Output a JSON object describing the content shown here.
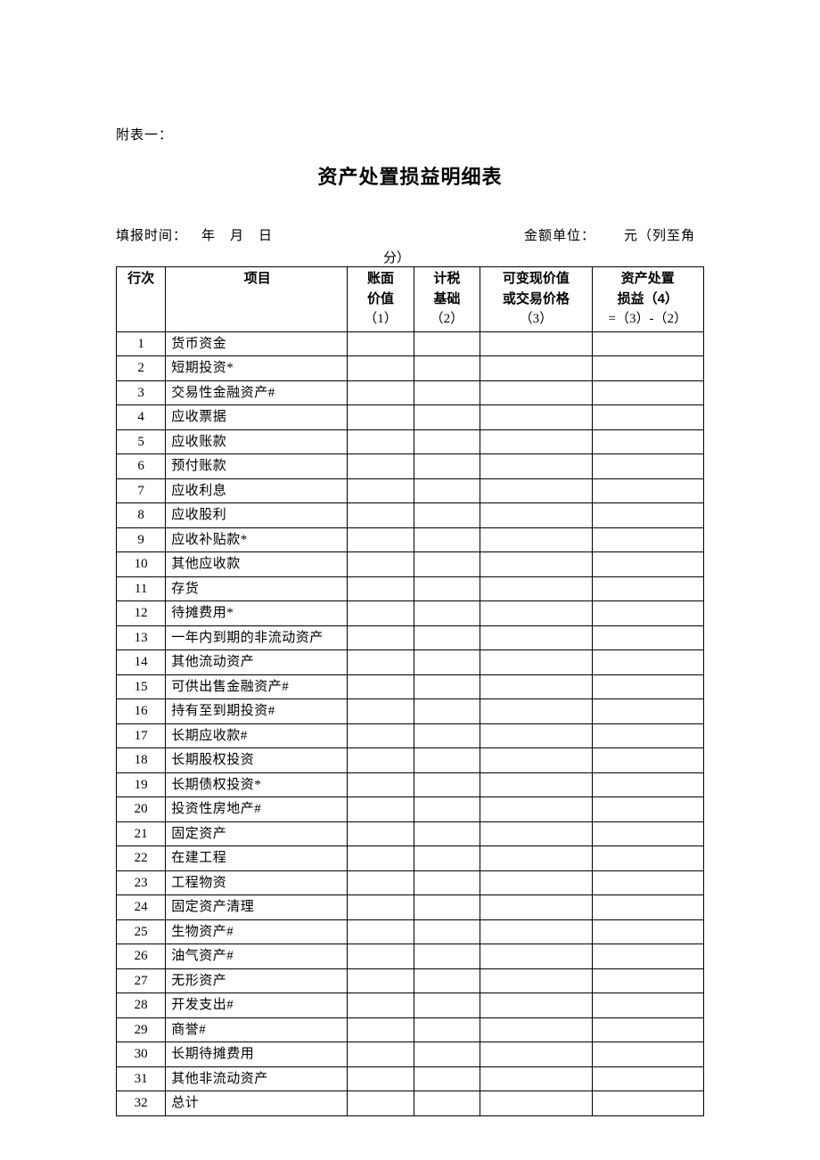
{
  "prefix": "附表一：",
  "title": "资产处置损益明细表",
  "meta": {
    "left": "填报时间： 年 月 日",
    "right": "金额单位：  元（列至角",
    "fen": "分）"
  },
  "table": {
    "headers": {
      "rownum": "行次",
      "item": "项目",
      "c1_l1": "账面",
      "c1_l2": "价值",
      "c1_l3": "（1）",
      "c2_l1": "计税",
      "c2_l2": "基础",
      "c2_l3": "（2）",
      "c3_l1": "可变现价值",
      "c3_l2": "或交易价格",
      "c3_l3": "（3）",
      "c4_l1": "资产处置",
      "c4_l2": "损益（4）",
      "c4_l3": "=（3）-（2）"
    },
    "rows": [
      {
        "n": "1",
        "item": "货币资金",
        "v1": "",
        "v2": "",
        "v3": "",
        "v4": ""
      },
      {
        "n": "2",
        "item": "短期投资*",
        "v1": "",
        "v2": "",
        "v3": "",
        "v4": ""
      },
      {
        "n": "3",
        "item": "交易性金融资产#",
        "v1": "",
        "v2": "",
        "v3": "",
        "v4": ""
      },
      {
        "n": "4",
        "item": "应收票据",
        "v1": "",
        "v2": "",
        "v3": "",
        "v4": ""
      },
      {
        "n": "5",
        "item": "应收账款",
        "v1": "",
        "v2": "",
        "v3": "",
        "v4": ""
      },
      {
        "n": "6",
        "item": "预付账款",
        "v1": "",
        "v2": "",
        "v3": "",
        "v4": ""
      },
      {
        "n": "7",
        "item": "应收利息",
        "v1": "",
        "v2": "",
        "v3": "",
        "v4": ""
      },
      {
        "n": "8",
        "item": "应收股利",
        "v1": "",
        "v2": "",
        "v3": "",
        "v4": ""
      },
      {
        "n": "9",
        "item": "应收补贴款*",
        "v1": "",
        "v2": "",
        "v3": "",
        "v4": ""
      },
      {
        "n": "10",
        "item": "其他应收款",
        "v1": "",
        "v2": "",
        "v3": "",
        "v4": ""
      },
      {
        "n": "11",
        "item": "存货",
        "v1": "",
        "v2": "",
        "v3": "",
        "v4": ""
      },
      {
        "n": "12",
        "item": "待摊费用*",
        "v1": "",
        "v2": "",
        "v3": "",
        "v4": ""
      },
      {
        "n": "13",
        "item": "一年内到期的非流动资产",
        "v1": "",
        "v2": "",
        "v3": "",
        "v4": ""
      },
      {
        "n": "14",
        "item": "其他流动资产",
        "v1": "",
        "v2": "",
        "v3": "",
        "v4": ""
      },
      {
        "n": "15",
        "item": "可供出售金融资产#",
        "v1": "",
        "v2": "",
        "v3": "",
        "v4": ""
      },
      {
        "n": "16",
        "item": "持有至到期投资#",
        "v1": "",
        "v2": "",
        "v3": "",
        "v4": ""
      },
      {
        "n": "17",
        "item": "长期应收款#",
        "v1": "",
        "v2": "",
        "v3": "",
        "v4": ""
      },
      {
        "n": "18",
        "item": "长期股权投资",
        "v1": "",
        "v2": "",
        "v3": "",
        "v4": ""
      },
      {
        "n": "19",
        "item": "长期债权投资*",
        "v1": "",
        "v2": "",
        "v3": "",
        "v4": ""
      },
      {
        "n": "20",
        "item": "投资性房地产#",
        "v1": "",
        "v2": "",
        "v3": "",
        "v4": ""
      },
      {
        "n": "21",
        "item": "固定资产",
        "v1": "",
        "v2": "",
        "v3": "",
        "v4": ""
      },
      {
        "n": "22",
        "item": "在建工程",
        "v1": "",
        "v2": "",
        "v3": "",
        "v4": ""
      },
      {
        "n": "23",
        "item": "工程物资",
        "v1": "",
        "v2": "",
        "v3": "",
        "v4": ""
      },
      {
        "n": "24",
        "item": "固定资产清理",
        "v1": "",
        "v2": "",
        "v3": "",
        "v4": ""
      },
      {
        "n": "25",
        "item": "生物资产#",
        "v1": "",
        "v2": "",
        "v3": "",
        "v4": ""
      },
      {
        "n": "26",
        "item": "油气资产#",
        "v1": "",
        "v2": "",
        "v3": "",
        "v4": ""
      },
      {
        "n": "27",
        "item": "无形资产",
        "v1": "",
        "v2": "",
        "v3": "",
        "v4": ""
      },
      {
        "n": "28",
        "item": "开发支出#",
        "v1": "",
        "v2": "",
        "v3": "",
        "v4": ""
      },
      {
        "n": "29",
        "item": "商誉#",
        "v1": "",
        "v2": "",
        "v3": "",
        "v4": ""
      },
      {
        "n": "30",
        "item": "长期待摊费用",
        "v1": "",
        "v2": "",
        "v3": "",
        "v4": ""
      },
      {
        "n": "31",
        "item": "其他非流动资产",
        "v1": "",
        "v2": "",
        "v3": "",
        "v4": ""
      },
      {
        "n": "32",
        "item": "总计",
        "v1": "",
        "v2": "",
        "v3": "",
        "v4": ""
      }
    ]
  }
}
